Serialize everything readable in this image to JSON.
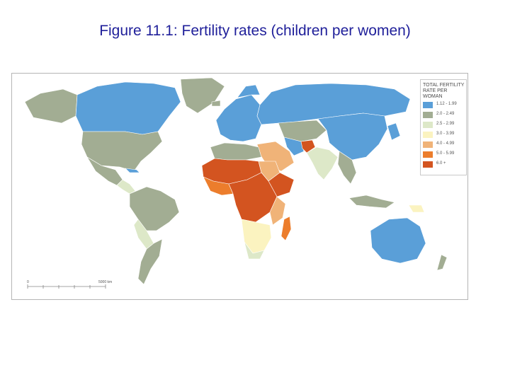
{
  "title": "Figure 11.1: Fertility rates (children per women)",
  "legend": {
    "title": "TOTAL FERTILITY RATE PER WOMAN",
    "items": [
      {
        "label": "1.12 - 1.99",
        "color": "#5a9fd8"
      },
      {
        "label": "2.0 - 2.49",
        "color": "#a2ad93"
      },
      {
        "label": "2.5 - 2.99",
        "color": "#dde8c8"
      },
      {
        "label": "3.0 - 3.99",
        "color": "#fbf3c0"
      },
      {
        "label": "4.0 - 4.99",
        "color": "#f0b378"
      },
      {
        "label": "5.0 - 5.99",
        "color": "#ec7d2c"
      },
      {
        "label": "6.0 +",
        "color": "#d35420"
      }
    ]
  },
  "scale_bar": {
    "start": "0",
    "end": "5000 km"
  }
}
